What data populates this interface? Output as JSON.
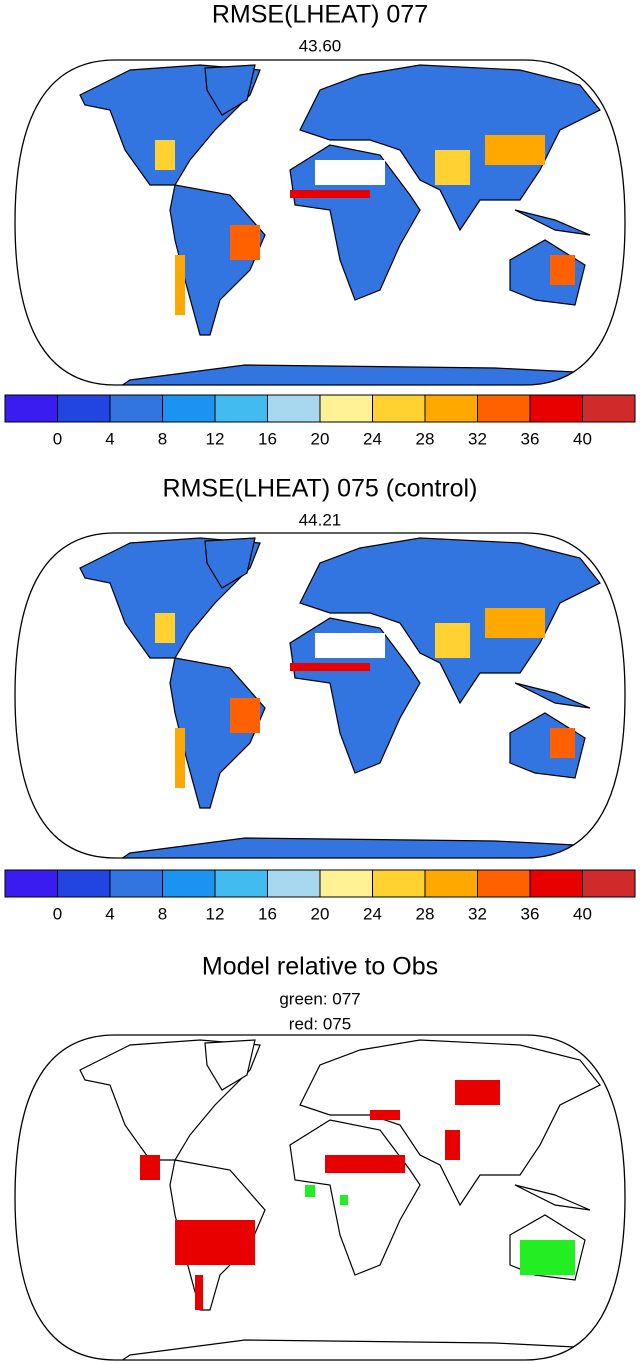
{
  "panels": [
    {
      "title": "RMSE(LHEAT) 077",
      "subtitle": "43.60",
      "colorbar": {
        "colors": [
          "#3a1cf0",
          "#2244e0",
          "#3274e0",
          "#1a94f0",
          "#42bcf0",
          "#a8d8f0",
          "#fff294",
          "#ffd232",
          "#ffa800",
          "#ff6000",
          "#e80000",
          "#d02a2a"
        ],
        "ticks": [
          0,
          4,
          8,
          12,
          16,
          20,
          24,
          28,
          32,
          36,
          40
        ]
      }
    },
    {
      "title": "RMSE(LHEAT) 075 (control)",
      "subtitle": "44.21",
      "colorbar": {
        "colors": [
          "#3a1cf0",
          "#2244e0",
          "#3274e0",
          "#1a94f0",
          "#42bcf0",
          "#a8d8f0",
          "#fff294",
          "#ffd232",
          "#ffa800",
          "#ff6000",
          "#e80000",
          "#d02a2a"
        ],
        "ticks": [
          0,
          4,
          8,
          12,
          16,
          20,
          24,
          28,
          32,
          36,
          40
        ]
      }
    },
    {
      "title": "Model relative to Obs",
      "subtitle_lines": [
        "green: 077",
        "red: 075"
      ]
    }
  ]
}
